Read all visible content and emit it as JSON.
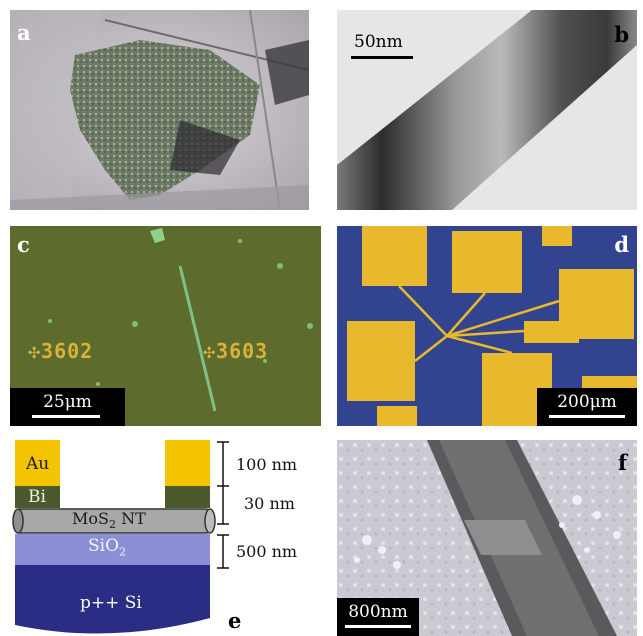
{
  "panels": {
    "a": {
      "label": "a"
    },
    "b": {
      "label": "b",
      "scale": "50nm"
    },
    "c": {
      "label": "c",
      "scale": "25μm",
      "marker_left": "3602",
      "marker_right": "3603"
    },
    "d": {
      "label": "d",
      "scale": "200μm"
    },
    "e": {
      "label": "e",
      "layers": {
        "au": "Au",
        "bi": "Bi",
        "nt_prefix": "MoS",
        "nt_sub": "2",
        "nt_suffix": " NT",
        "sio2_prefix": "SiO",
        "sio2_sub": "2",
        "si": "p++ Si"
      },
      "dims": {
        "au": "100 nm",
        "bi": "30 nm",
        "sio2": "500 nm"
      }
    },
    "f": {
      "label": "f",
      "scale": "800nm"
    }
  },
  "colors": {
    "gold": "#f5c400",
    "bi": "#4a5a2c",
    "nt": "#a8a8a8",
    "sio2": "#8c8fd6",
    "si": "#2b2d85"
  }
}
